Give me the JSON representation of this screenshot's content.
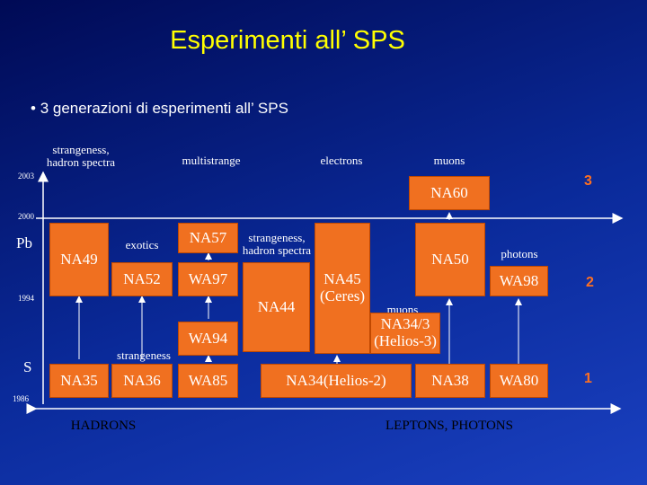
{
  "header": {
    "title": "Esperimenti all’ SPS",
    "bullet": "3 generazioni di esperimenti all’ SPS"
  },
  "years": [
    "2003",
    "2000",
    "1994",
    "1986"
  ],
  "beams": [
    "Pb",
    "S"
  ],
  "generations": [
    "3",
    "2",
    "1"
  ],
  "topics": [
    "strangeness,\nhadron spectra",
    "multistrange",
    "electrons",
    "muons",
    "exotics",
    "strangeness,\nhadron spectra",
    "photons",
    "muons",
    "strangeness"
  ],
  "experiments": [
    "NA60",
    "NA49",
    "NA52",
    "NA57",
    "WA97",
    "NA44",
    "NA45\n(Ceres)",
    "NA50",
    "WA98",
    "WA94",
    "NA34/3\n(Helios-3)",
    "NA35",
    "NA36",
    "WA85",
    "NA34(Helios-2)",
    "NA38",
    "WA80"
  ],
  "footer": [
    "HADRONS",
    "LEPTONS, PHOTONS"
  ]
}
